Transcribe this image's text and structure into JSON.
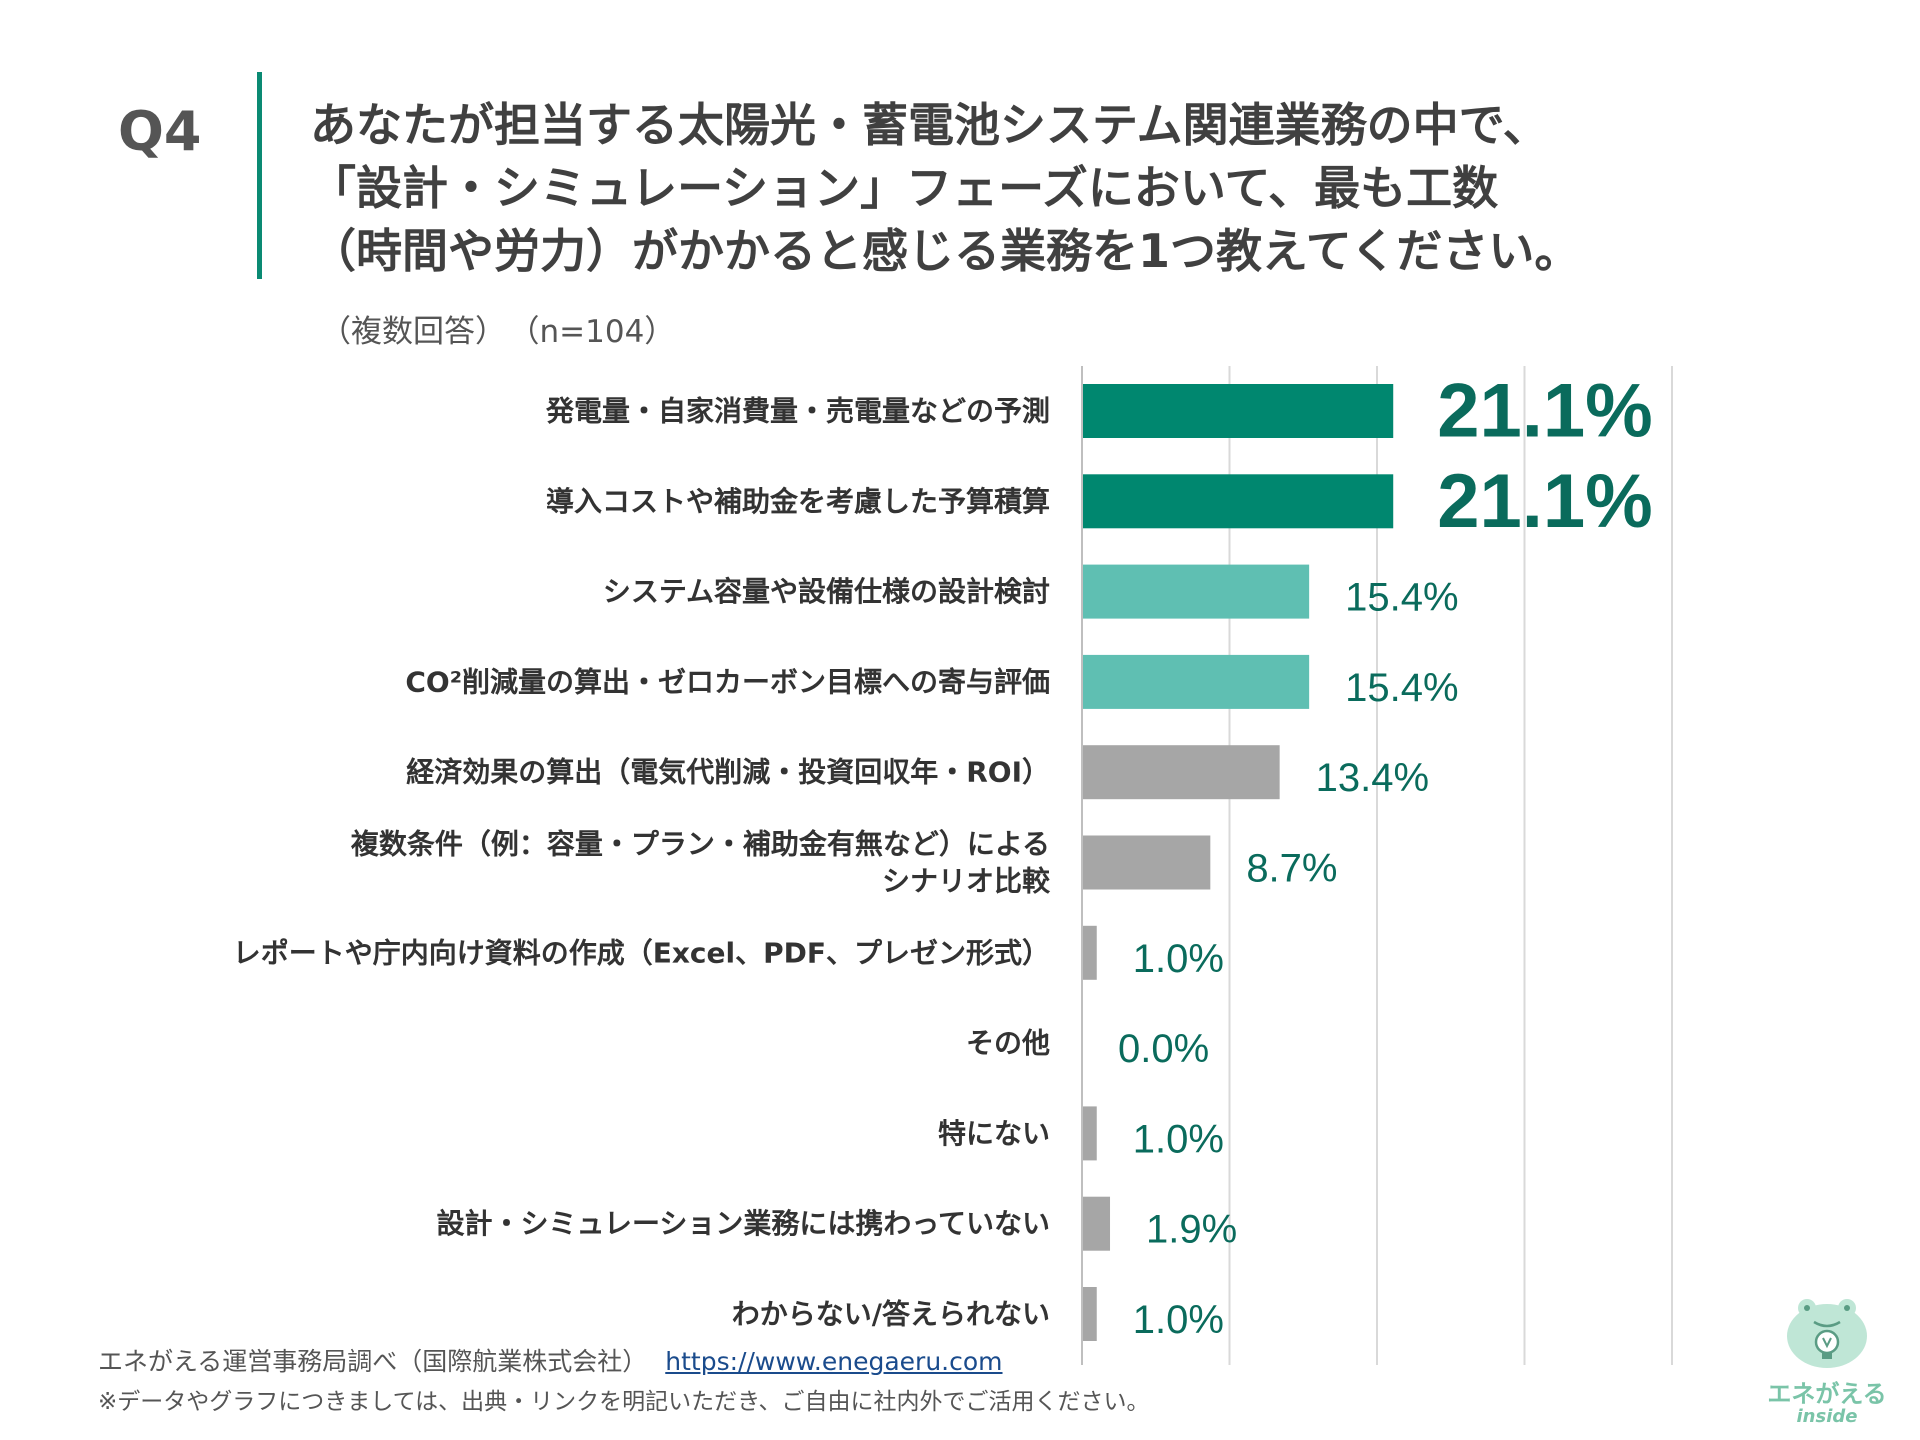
{
  "question": {
    "label": "Q4",
    "title_lines": [
      "あなたが担当する太陽光・蓄電池システム関連業務の中で、",
      "「設計・シミュレーション」フェーズにおいて、最も工数",
      "（時間や労力）がかかると感じる業務を1つ教えてください。"
    ],
    "answer_type": "（複数回答）",
    "sample_size": "（n=104）"
  },
  "chart_data": {
    "type": "bar",
    "orientation": "horizontal",
    "categories": [
      "発電量・自家消費量・売電量などの予測",
      "導入コストや補助金を考慮した予算積算",
      "システム容量や設備仕様の設計検討",
      "CO²削減量の算出・ゼロカーボン目標への寄与評価",
      "経済効果の算出（電気代削減・投資回収年・ROI）",
      "複数条件（例：容量・プラン・補助金有無など）による\nシナリオ比較",
      "レポートや庁内向け資料の作成（Excel、PDF、プレゼン形式）",
      "その他",
      "特にない",
      "設計・シミュレーション業務には携わっていない",
      "わからない/答えられない"
    ],
    "values": [
      21.1,
      21.1,
      15.4,
      15.4,
      13.4,
      8.7,
      1.0,
      0.0,
      1.0,
      1.9,
      1.0
    ],
    "value_labels": [
      "21.1%",
      "21.1%",
      "15.4%",
      "15.4%",
      "13.4%",
      "8.7%",
      "1.0%",
      "0.0%",
      "1.0%",
      "1.9%",
      "1.0%"
    ],
    "xlim": [
      0,
      40
    ],
    "grid": true,
    "colors": {
      "top": "#00876f",
      "second": "#5fbfb2",
      "rest": "#a6a6a6",
      "label": "#0a6b5c",
      "grid": "#d9d9d9"
    },
    "color_groups": [
      "top",
      "top",
      "second",
      "second",
      "rest",
      "rest",
      "rest",
      "rest",
      "rest",
      "rest",
      "rest"
    ]
  },
  "footer": {
    "source": "エネがえる運営事務局調べ（国際航業株式会社）",
    "url": "https://www.enegaeru.com",
    "note": "※データやグラフにつきましては、出典・リンクを明記いただき、ご自由に社内外でご活用ください。"
  },
  "logo": {
    "icon": "frog-lightbulb-icon",
    "text": "エネがえる",
    "sub": "inside",
    "color": "#7ac4a8"
  }
}
